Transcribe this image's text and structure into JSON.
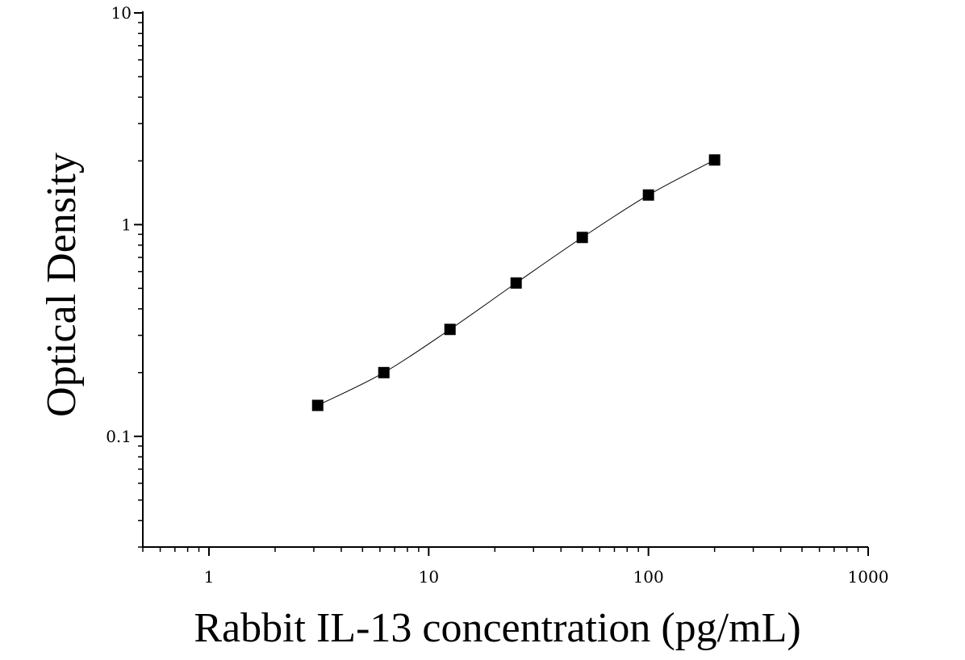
{
  "chart_data": {
    "type": "scatter",
    "title": "",
    "xlabel": "Rabbit IL-13 concentration (pg/mL)",
    "ylabel": "Optical Density",
    "xscale": "log",
    "yscale": "log",
    "xlim": [
      0.5,
      1000
    ],
    "ylim": [
      0.03,
      10
    ],
    "x_tick_labels": [
      "1",
      "10",
      "100",
      "1000"
    ],
    "y_tick_labels": [
      "0.1",
      "1",
      "10"
    ],
    "grid": false,
    "legend": "none",
    "marker": "square",
    "fit_line": "smooth curve",
    "color": "#000000",
    "points": [
      {
        "x": 3.125,
        "y": 0.14
      },
      {
        "x": 6.25,
        "y": 0.2
      },
      {
        "x": 12.5,
        "y": 0.32
      },
      {
        "x": 25,
        "y": 0.53
      },
      {
        "x": 50,
        "y": 0.87
      },
      {
        "x": 100,
        "y": 1.38
      },
      {
        "x": 200,
        "y": 2.02
      }
    ]
  }
}
